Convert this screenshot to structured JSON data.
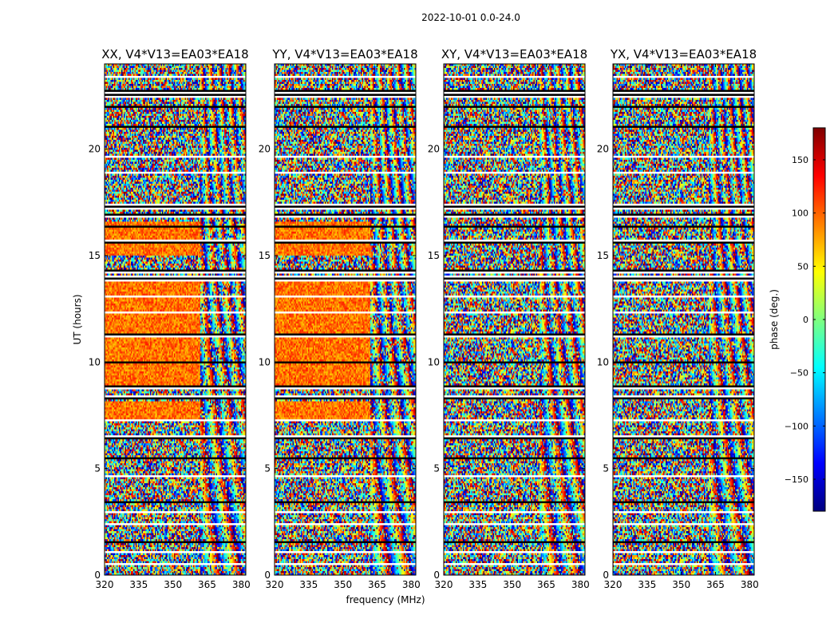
{
  "figure_title": "2022-10-01 0.0-24.0",
  "chart_data": {
    "type": "heatmap",
    "title": "2022-10-01 0.0-24.0",
    "xlabel": "frequency (MHz)",
    "ylabel": "UT (hours)",
    "xlim": [
      320,
      382
    ],
    "ylim": [
      0,
      24
    ],
    "x_ticks": [
      320,
      335,
      350,
      365,
      380
    ],
    "y_ticks": [
      0,
      5,
      10,
      15,
      20
    ],
    "colorbar": {
      "label": "phase (deg.)",
      "range": [
        -180,
        180
      ],
      "ticks": [
        -150,
        -100,
        -50,
        0,
        50,
        100,
        150
      ],
      "colormap": "jet",
      "colors": [
        "#00007f",
        "#0000ff",
        "#007fff",
        "#00ffff",
        "#7fff7f",
        "#ffff00",
        "#ff7f00",
        "#ff0000",
        "#7f0000"
      ]
    },
    "panels": [
      {
        "title": "XX, V4*V13=EA03*EA18",
        "baseline_phase_9_to_14h_deg": 95,
        "baseline_phase_15_to_16_5h_deg": 95,
        "coherent_below_MHz": 362
      },
      {
        "title": "YY, V4*V13=EA03*EA18",
        "baseline_phase_9_to_14h_deg": 95,
        "baseline_phase_15_to_16_5h_deg": 95,
        "coherent_below_MHz": 362
      },
      {
        "title": "XY, V4*V13=EA03*EA18",
        "baseline_phase_9_to_14h_deg": null,
        "baseline_phase_15_to_16_5h_deg": null,
        "coherent_below_MHz": null
      },
      {
        "title": "YX, V4*V13=EA03*EA18",
        "baseline_phase_9_to_14h_deg": null,
        "baseline_phase_15_to_16_5h_deg": null,
        "coherent_below_MHz": null
      }
    ],
    "flagged_gaps_hours": [
      [
        0.45,
        0.55
      ],
      [
        1.0,
        1.1
      ],
      [
        1.5,
        1.6
      ],
      [
        2.3,
        2.4
      ],
      [
        2.9,
        3.0
      ],
      [
        3.35,
        3.5
      ],
      [
        4.6,
        4.7
      ],
      [
        5.4,
        5.5
      ],
      [
        6.4,
        6.55
      ],
      [
        7.25,
        7.35
      ],
      [
        8.25,
        8.4
      ],
      [
        8.7,
        8.9
      ],
      [
        9.9,
        10.0
      ],
      [
        11.2,
        11.3
      ],
      [
        12.3,
        12.4
      ],
      [
        13.0,
        13.1
      ],
      [
        13.8,
        14.05
      ],
      [
        14.15,
        14.3
      ],
      [
        15.6,
        15.75
      ],
      [
        16.3,
        16.45
      ],
      [
        16.8,
        17.0
      ],
      [
        17.2,
        17.4
      ],
      [
        18.8,
        18.95
      ],
      [
        19.6,
        19.7
      ],
      [
        21.0,
        21.1
      ],
      [
        21.9,
        22.0
      ],
      [
        22.45,
        22.75
      ],
      [
        23.3,
        23.4
      ]
    ]
  }
}
